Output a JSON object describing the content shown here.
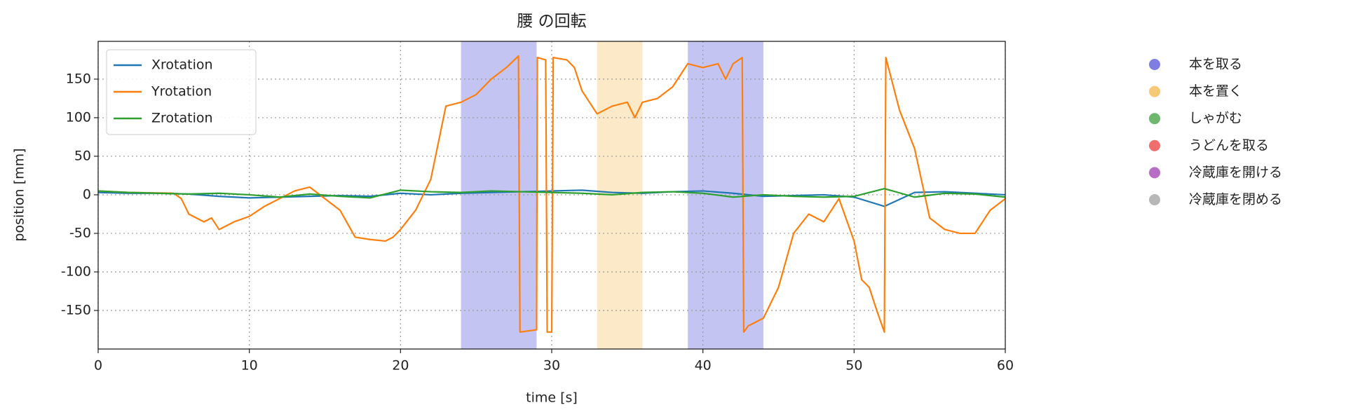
{
  "chart_data": {
    "type": "line",
    "title": "腰 の回転",
    "x_label": "time [s]",
    "y_label": "position [mm]",
    "xlim": [
      0,
      60
    ],
    "ylim": [
      -200,
      199
    ],
    "xticks": [
      0,
      10,
      20,
      30,
      40,
      50,
      60
    ],
    "yticks": [
      -150,
      -100,
      -50,
      0,
      50,
      100,
      150
    ],
    "grid": true,
    "legend": "upper left",
    "series": [
      {
        "name": "Xrotation",
        "color": "#1f77b4",
        "x": [
          0,
          2,
          4,
          6,
          8,
          10,
          12,
          14,
          16,
          18,
          20,
          22,
          24,
          26,
          28,
          30,
          32,
          34,
          36,
          38,
          40,
          42,
          44,
          46,
          48,
          50,
          52,
          54,
          56,
          58,
          60
        ],
        "values": [
          3,
          2,
          2,
          1,
          -2,
          -4,
          -3,
          -2,
          -1,
          -2,
          2,
          0,
          2,
          3,
          4,
          5,
          6,
          3,
          2,
          4,
          5,
          2,
          -2,
          -1,
          0,
          -3,
          -15,
          3,
          4,
          2,
          0
        ]
      },
      {
        "name": "Yrotation",
        "color": "#ff7f0e",
        "x": [
          0,
          2,
          5,
          5.5,
          6,
          7,
          7.5,
          8,
          9,
          10,
          11,
          12,
          13,
          14,
          15,
          16,
          17,
          18,
          19,
          19.5,
          20,
          21,
          22,
          23,
          24,
          25,
          26,
          27,
          27.8,
          27.9,
          29,
          29.05,
          29.6,
          29.7,
          30,
          30.1,
          31,
          31.5,
          32,
          33,
          34,
          35,
          35.5,
          36,
          37,
          38,
          39,
          40,
          41,
          41.5,
          42,
          42.6,
          42.7,
          43,
          44,
          45,
          46,
          47,
          48,
          49,
          50,
          50.5,
          51,
          51.5,
          52,
          52.1,
          53,
          54,
          55,
          56,
          57,
          58,
          59,
          60
        ],
        "values": [
          5,
          3,
          2,
          -5,
          -25,
          -35,
          -30,
          -45,
          -35,
          -28,
          -15,
          -5,
          5,
          10,
          -5,
          -20,
          -55,
          -58,
          -60,
          -55,
          -45,
          -20,
          20,
          115,
          120,
          130,
          150,
          165,
          180,
          -178,
          -175,
          178,
          175,
          -178,
          -178,
          178,
          175,
          165,
          135,
          105,
          115,
          120,
          100,
          120,
          125,
          140,
          170,
          165,
          170,
          150,
          170,
          178,
          -178,
          -170,
          -160,
          -120,
          -50,
          -25,
          -35,
          -5,
          -60,
          -110,
          -120,
          -150,
          -178,
          178,
          110,
          60,
          -30,
          -45,
          -50,
          -50,
          -20,
          -5
        ]
      },
      {
        "name": "Zrotation",
        "color": "#2ca02c",
        "x": [
          0,
          2,
          4,
          6,
          8,
          10,
          12,
          14,
          16,
          18,
          20,
          22,
          24,
          26,
          28,
          30,
          32,
          34,
          36,
          38,
          40,
          42,
          44,
          46,
          48,
          50,
          52,
          54,
          56,
          58,
          60
        ],
        "values": [
          5,
          3,
          2,
          1,
          2,
          0,
          -3,
          1,
          -2,
          -4,
          6,
          4,
          3,
          5,
          4,
          3,
          2,
          0,
          3,
          4,
          2,
          -3,
          0,
          -2,
          -3,
          -2,
          8,
          -3,
          2,
          1,
          -3
        ]
      }
    ],
    "spans": [
      {
        "start": 24,
        "end": 29,
        "color": "#5555dd"
      },
      {
        "start": 33,
        "end": 36,
        "color": "#f5c060"
      },
      {
        "start": 39,
        "end": 44,
        "color": "#5555dd"
      }
    ],
    "event_legend": [
      {
        "name": "本を取る",
        "color": "#6666dd"
      },
      {
        "name": "本を置く",
        "color": "#f5c060"
      },
      {
        "name": "しゃがむ",
        "color": "#55aa55"
      },
      {
        "name": "うどんを取る",
        "color": "#ee5555"
      },
      {
        "name": "冷蔵庫を開ける",
        "color": "#aa55bb"
      },
      {
        "name": "冷蔵庫を閉める",
        "color": "#aaaaaa"
      }
    ]
  }
}
